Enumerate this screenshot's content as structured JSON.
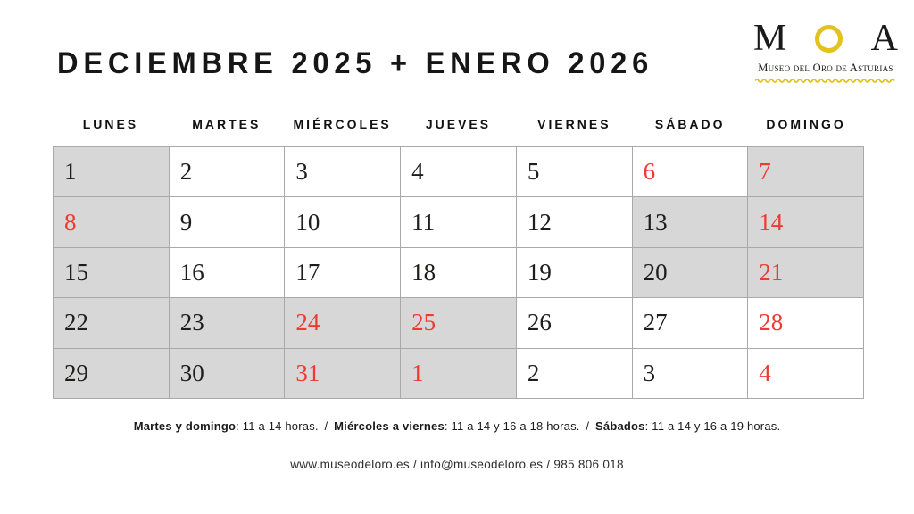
{
  "header": {
    "title": "DECIEMBRE 2025 + ENERO 2026"
  },
  "logo": {
    "letter_m": "M",
    "letter_o": "O",
    "letter_a": "A",
    "subtitle": "Museo del Oro de Asturias"
  },
  "colors": {
    "gold": "#e3c219",
    "holiday_red": "#ee3a30",
    "shaded_cell": "#d7d7d7",
    "grid_line": "#a9a9a9",
    "ink": "#161616"
  },
  "calendar": {
    "weekdays": [
      "LUNES",
      "MARTES",
      "MIÉRCOLES",
      "JUEVES",
      "VIERNES",
      "SÁBADO",
      "DOMINGO"
    ],
    "cells": [
      {
        "day": "1",
        "shaded": true,
        "red": false
      },
      {
        "day": "2",
        "shaded": false,
        "red": false
      },
      {
        "day": "3",
        "shaded": false,
        "red": false
      },
      {
        "day": "4",
        "shaded": false,
        "red": false
      },
      {
        "day": "5",
        "shaded": false,
        "red": false
      },
      {
        "day": "6",
        "shaded": false,
        "red": true
      },
      {
        "day": "7",
        "shaded": true,
        "red": true
      },
      {
        "day": "8",
        "shaded": true,
        "red": true
      },
      {
        "day": "9",
        "shaded": false,
        "red": false
      },
      {
        "day": "10",
        "shaded": false,
        "red": false
      },
      {
        "day": "11",
        "shaded": false,
        "red": false
      },
      {
        "day": "12",
        "shaded": false,
        "red": false
      },
      {
        "day": "13",
        "shaded": true,
        "red": false
      },
      {
        "day": "14",
        "shaded": true,
        "red": true
      },
      {
        "day": "15",
        "shaded": true,
        "red": false
      },
      {
        "day": "16",
        "shaded": false,
        "red": false
      },
      {
        "day": "17",
        "shaded": false,
        "red": false
      },
      {
        "day": "18",
        "shaded": false,
        "red": false
      },
      {
        "day": "19",
        "shaded": false,
        "red": false
      },
      {
        "day": "20",
        "shaded": true,
        "red": false
      },
      {
        "day": "21",
        "shaded": true,
        "red": true
      },
      {
        "day": "22",
        "shaded": true,
        "red": false
      },
      {
        "day": "23",
        "shaded": true,
        "red": false
      },
      {
        "day": "24",
        "shaded": true,
        "red": true
      },
      {
        "day": "25",
        "shaded": true,
        "red": true
      },
      {
        "day": "26",
        "shaded": false,
        "red": false
      },
      {
        "day": "27",
        "shaded": false,
        "red": false
      },
      {
        "day": "28",
        "shaded": false,
        "red": true
      },
      {
        "day": "29",
        "shaded": true,
        "red": false
      },
      {
        "day": "30",
        "shaded": true,
        "red": false
      },
      {
        "day": "31",
        "shaded": true,
        "red": true
      },
      {
        "day": "1",
        "shaded": true,
        "red": true
      },
      {
        "day": "2",
        "shaded": false,
        "red": false
      },
      {
        "day": "3",
        "shaded": false,
        "red": false
      },
      {
        "day": "4",
        "shaded": false,
        "red": true
      }
    ]
  },
  "footer": {
    "hours": {
      "tue_sun_label": "Martes y domingo",
      "tue_sun_value": ": 11 a 14 horas. ",
      "sep1": "/",
      "wed_fri_label": " Miércoles a viernes",
      "wed_fri_value": ": 11 a 14 y 16 a 18 horas. ",
      "sep2": "/",
      "sat_label": " Sábados",
      "sat_value": ": 11 a 14 y 16 a 19 horas."
    },
    "contact": "www.museodeloro.es / info@museodeloro.es / 985 806 018"
  }
}
